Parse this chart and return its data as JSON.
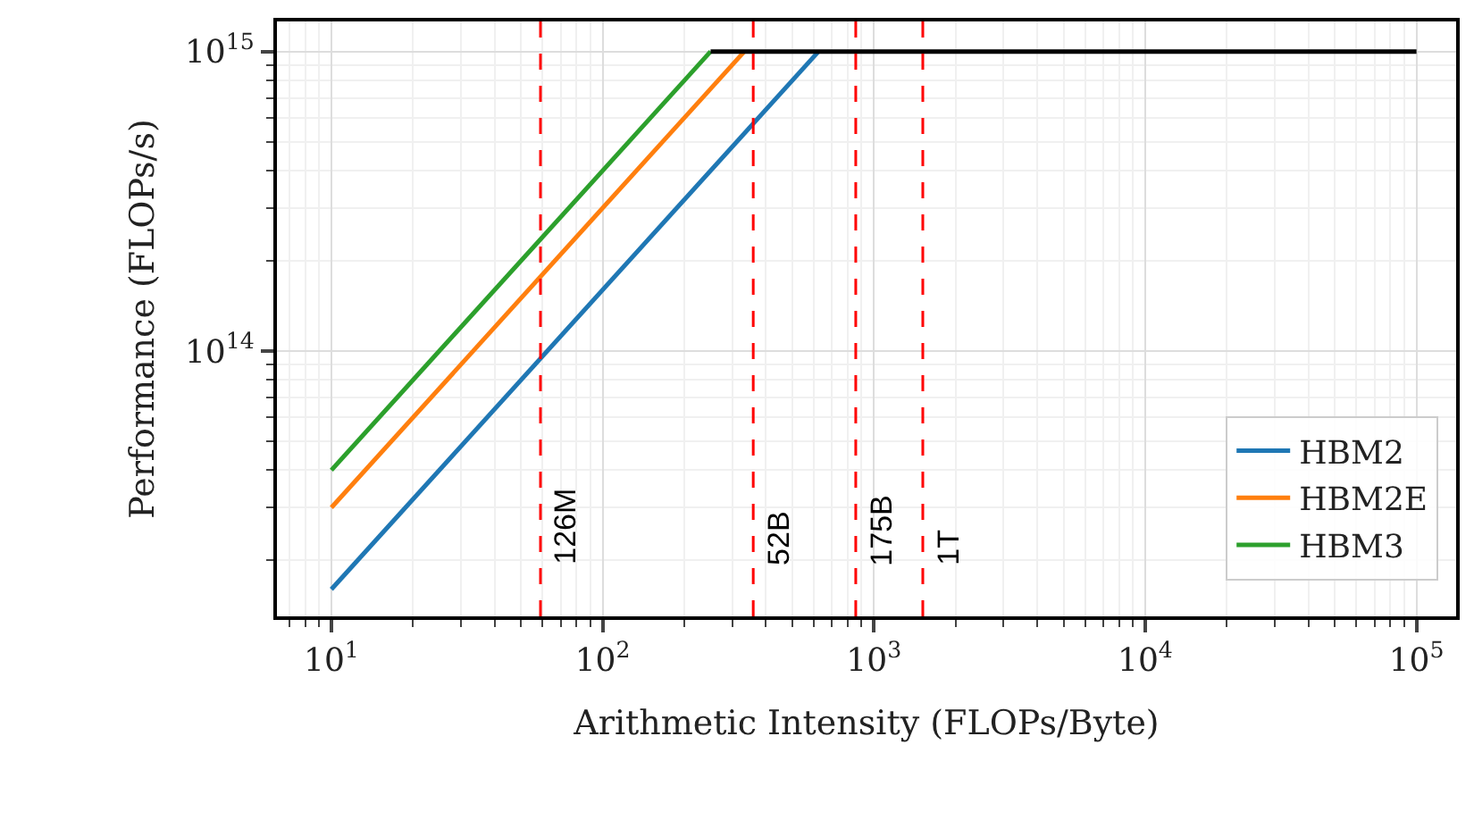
{
  "chart_data": {
    "type": "line",
    "xlabel": "Arithmetic Intensity (FLOPs/Byte)",
    "ylabel": "Performance (FLOPs/s)",
    "log": "xy",
    "grid": true,
    "legend": "bottom right",
    "marker": "none",
    "line_style": "solid",
    "xlim": [
      6.3,
      140000
    ],
    "ylim": [
      13000000000000.0,
      1260000000000000.0
    ],
    "xticks": [
      {
        "value": 10,
        "label": "10$^{1}$"
      },
      {
        "value": 100,
        "label": "10$^{2}$"
      },
      {
        "value": 1000,
        "label": "10$^{3}$"
      },
      {
        "value": 10000,
        "label": "10$^{4}$"
      },
      {
        "value": 100000,
        "label": "10$^{5}$"
      }
    ],
    "yticks": [
      {
        "value": 100000000000000.0,
        "label": "10$^{14}$"
      },
      {
        "value": 1000000000000000.0,
        "label": "10$^{15}$"
      }
    ],
    "series": [
      {
        "name": "HBM2",
        "color": "#1f77b4",
        "x": [
          10,
          625
        ],
        "values": [
          16000000000000.0,
          1000000000000000.0
        ]
      },
      {
        "name": "HBM2E",
        "color": "#ff7f0e",
        "x": [
          10,
          333
        ],
        "values": [
          30000000000000.0,
          1000000000000000.0
        ]
      },
      {
        "name": "HBM3",
        "color": "#2ca02c",
        "x": [
          10,
          250
        ],
        "values": [
          40000000000000.0,
          1000000000000000.0
        ]
      },
      {
        "color": "#000000",
        "x": [
          250,
          100000
        ],
        "values": [
          1000000000000000.0,
          1000000000000000.0
        ]
      }
    ],
    "ref_lines": [
      {
        "axis": "x",
        "value": 59,
        "label": "126M",
        "color": "#ff0000",
        "line_style": "dashed"
      },
      {
        "axis": "x",
        "value": 359,
        "label": "52B",
        "color": "#ff0000",
        "line_style": "dashed"
      },
      {
        "axis": "x",
        "value": 857,
        "label": "175B",
        "color": "#ff0000",
        "line_style": "dashed"
      },
      {
        "axis": "x",
        "value": 1514,
        "label": "1T",
        "color": "#ff0000",
        "line_style": "dashed"
      }
    ]
  }
}
